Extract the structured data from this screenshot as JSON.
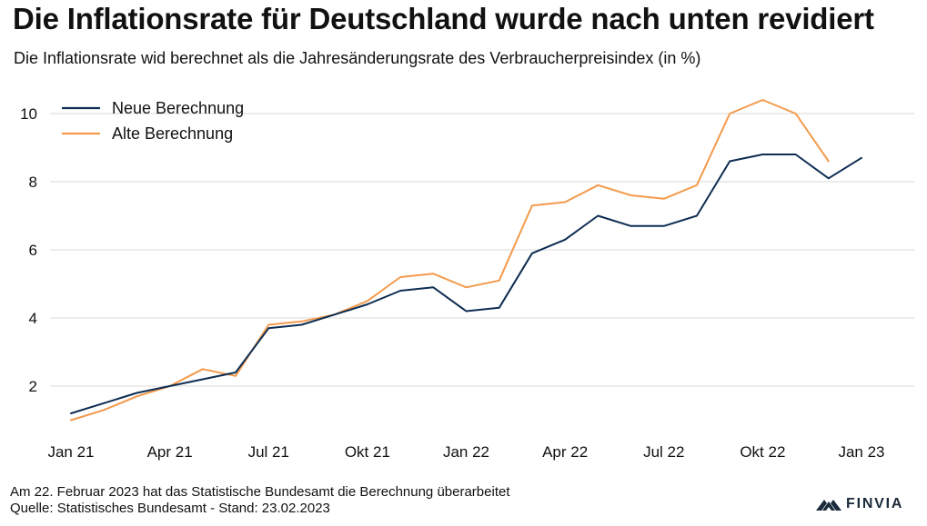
{
  "header": {
    "title": "Die Inflationsrate für Deutschland wurde nach unten revidiert",
    "subtitle": "Die Inflationsrate wid berechnet als die Jahresänderungsrate des Verbraucherpreisindex (in %)"
  },
  "footer": {
    "note": "Am 22. Februar 2023 hat das Statistische Bundesamt die Berechnung überarbeitet",
    "source": "Quelle: Statistisches Bundesamt - Stand: 23.02.2023",
    "brand": "FINVIA",
    "brand_icon": "finvia-logo-icon"
  },
  "chart_data": {
    "type": "line",
    "x": [
      "Jan 21",
      "Feb 21",
      "Mär 21",
      "Apr 21",
      "Mai 21",
      "Jun 21",
      "Jul 21",
      "Aug 21",
      "Sep 21",
      "Okt 21",
      "Nov 21",
      "Dez 21",
      "Jan 22",
      "Feb 22",
      "Mär 22",
      "Apr 22",
      "Mai 22",
      "Jun 22",
      "Jul 22",
      "Aug 22",
      "Sep 22",
      "Okt 22",
      "Nov 22",
      "Dez 22",
      "Jan 23"
    ],
    "x_tick_labels": [
      "Jan 21",
      "Apr 21",
      "Jul 21",
      "Okt 21",
      "Jan 22",
      "Apr 22",
      "Jul 22",
      "Okt 22",
      "Jan 23"
    ],
    "x_tick_indices": [
      0,
      3,
      6,
      9,
      12,
      15,
      18,
      21,
      24
    ],
    "series": [
      {
        "name": "Neue Berechnung",
        "color": "#0d2d52",
        "values": [
          1.2,
          1.5,
          1.8,
          2.0,
          2.2,
          2.4,
          3.7,
          3.8,
          4.1,
          4.4,
          4.8,
          4.9,
          4.2,
          4.3,
          5.9,
          6.3,
          7.0,
          6.7,
          6.7,
          7.0,
          8.6,
          8.8,
          8.8,
          8.1,
          8.7
        ]
      },
      {
        "name": "Alte Berechnung",
        "color": "#f39a4c",
        "values": [
          1.0,
          1.3,
          1.7,
          2.0,
          2.5,
          2.3,
          3.8,
          3.9,
          4.1,
          4.5,
          5.2,
          5.3,
          4.9,
          5.1,
          7.3,
          7.4,
          7.9,
          7.6,
          7.5,
          7.9,
          10.0,
          10.4,
          10.0,
          8.6,
          null
        ]
      }
    ],
    "y_ticks": [
      2,
      4,
      6,
      8,
      10
    ],
    "ylim": [
      0.5,
      11
    ],
    "grid": "horizontal",
    "legend_position": "top-left",
    "xlabel": "",
    "ylabel": ""
  }
}
